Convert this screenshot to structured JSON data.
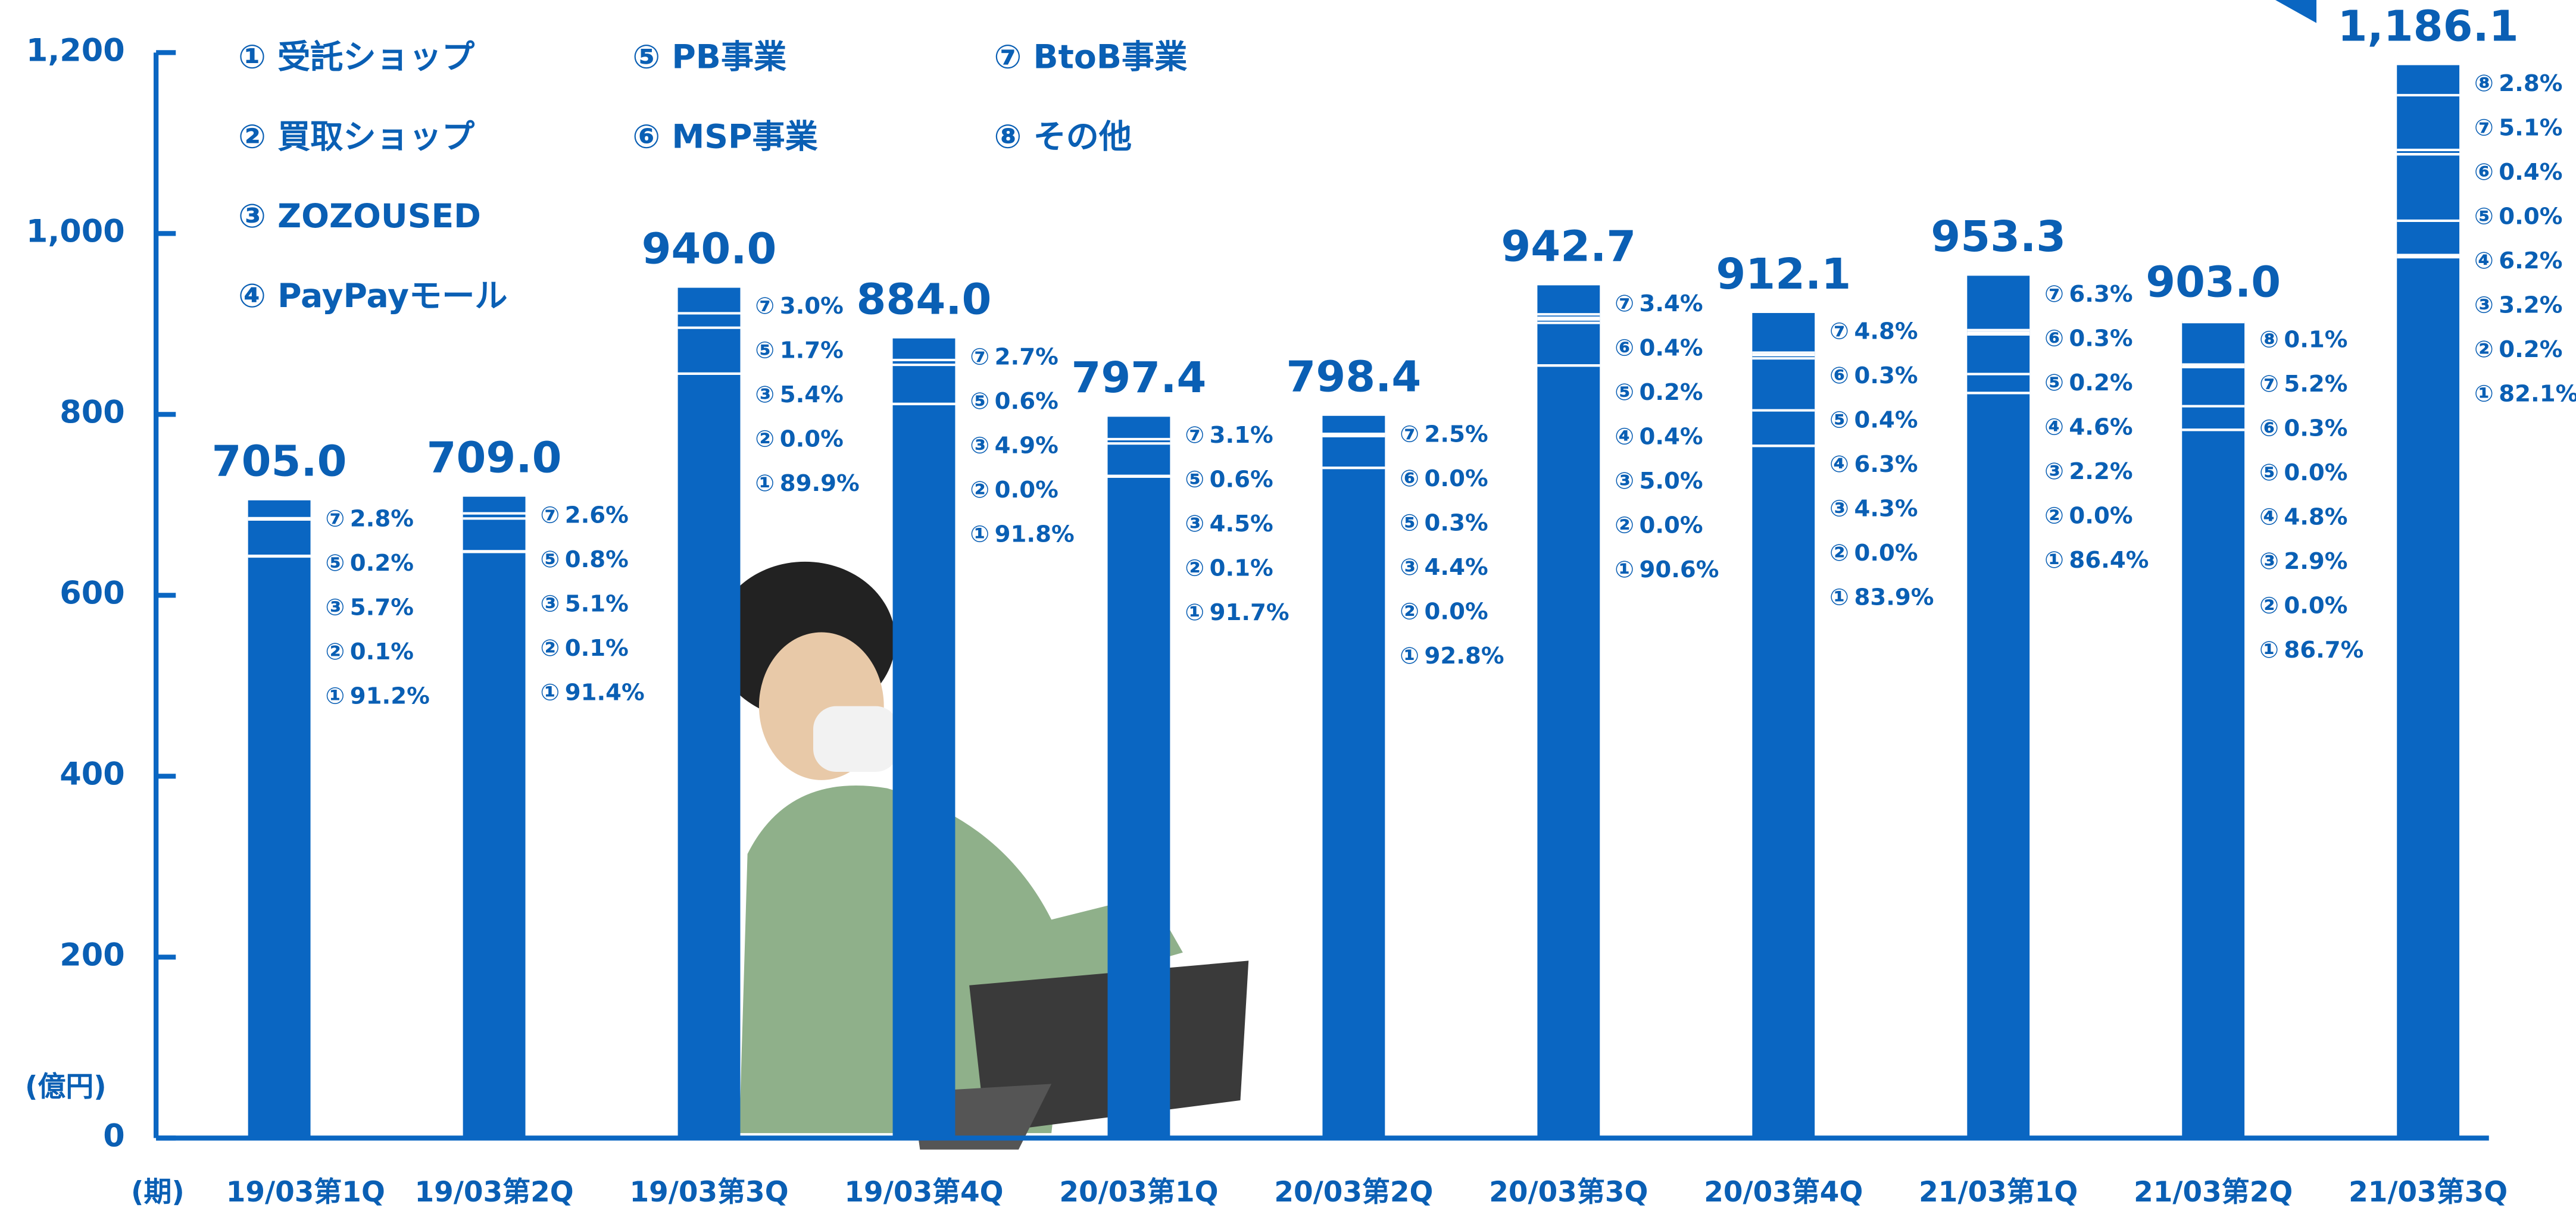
{
  "chart_data": {
    "type": "bar",
    "color": "#0a66c2",
    "y_unit": "(億円)",
    "x_unit": "(期)",
    "categories": [
      "19/03第1Q",
      "19/03第2Q",
      "19/03第3Q",
      "19/03第4Q",
      "20/03第1Q",
      "20/03第2Q",
      "20/03第3Q",
      "20/03第4Q",
      "21/03第1Q",
      "21/03第2Q",
      "21/03第3Q"
    ],
    "values": [
      705.0,
      709.0,
      940.0,
      884.0,
      797.4,
      798.4,
      942.7,
      912.1,
      953.3,
      903.0,
      1186.1
    ],
    "value_labels": [
      "705.0",
      "709.0",
      "940.0",
      "884.0",
      "797.4",
      "798.4",
      "942.7",
      "912.1",
      "953.3",
      "903.0",
      "1,186.1"
    ],
    "ylim": [
      0,
      1200
    ],
    "yticks": [
      0,
      200,
      400,
      600,
      800,
      {
        "value": 1000,
        "label": "1,000"
      },
      {
        "value": 1200,
        "label": "1,200"
      }
    ],
    "legend": [
      [
        "① 受託ショップ",
        "② 買取ショップ",
        "③ ZOZOUSED",
        "④ PayPayモール"
      ],
      [
        "⑤ PB事業",
        "⑥ MSP事業"
      ],
      [
        "⑦ BtoB事業",
        "⑧ その他"
      ]
    ],
    "breakdown": [
      [
        {
          "key": "⑦",
          "share": 2.8,
          "label": "2.8%"
        },
        {
          "key": "⑤",
          "share": 0.2,
          "label": "0.2%"
        },
        {
          "key": "③",
          "share": 5.7,
          "label": "5.7%"
        },
        {
          "key": "②",
          "share": 0.1,
          "label": "0.1%"
        },
        {
          "key": "①",
          "share": 91.2,
          "label": "91.2%"
        }
      ],
      [
        {
          "key": "⑦",
          "share": 2.6,
          "label": "2.6%"
        },
        {
          "key": "⑤",
          "share": 0.8,
          "label": "0.8%"
        },
        {
          "key": "③",
          "share": 5.1,
          "label": "5.1%"
        },
        {
          "key": "②",
          "share": 0.1,
          "label": "0.1%"
        },
        {
          "key": "①",
          "share": 91.4,
          "label": "91.4%"
        }
      ],
      [
        {
          "key": "⑦",
          "share": 3.0,
          "label": "3.0%"
        },
        {
          "key": "⑤",
          "share": 1.7,
          "label": "1.7%"
        },
        {
          "key": "③",
          "share": 5.4,
          "label": "5.4%"
        },
        {
          "key": "②",
          "share": 0.0,
          "label": "0.0%"
        },
        {
          "key": "①",
          "share": 89.9,
          "label": "89.9%"
        }
      ],
      [
        {
          "key": "⑦",
          "share": 2.7,
          "label": "2.7%"
        },
        {
          "key": "⑤",
          "share": 0.6,
          "label": "0.6%"
        },
        {
          "key": "③",
          "share": 4.9,
          "label": "4.9%"
        },
        {
          "key": "②",
          "share": 0.0,
          "label": "0.0%"
        },
        {
          "key": "①",
          "share": 91.8,
          "label": "91.8%"
        }
      ],
      [
        {
          "key": "⑦",
          "share": 3.1,
          "label": "3.1%"
        },
        {
          "key": "⑤",
          "share": 0.6,
          "label": "0.6%"
        },
        {
          "key": "③",
          "share": 4.5,
          "label": "4.5%"
        },
        {
          "key": "②",
          "share": 0.1,
          "label": "0.1%"
        },
        {
          "key": "①",
          "share": 91.7,
          "label": "91.7%"
        }
      ],
      [
        {
          "key": "⑦",
          "share": 2.5,
          "label": "2.5%"
        },
        {
          "key": "⑥",
          "share": 0.0,
          "label": "0.0%"
        },
        {
          "key": "⑤",
          "share": 0.3,
          "label": "0.3%"
        },
        {
          "key": "③",
          "share": 4.4,
          "label": "4.4%"
        },
        {
          "key": "②",
          "share": 0.0,
          "label": "0.0%"
        },
        {
          "key": "①",
          "share": 92.8,
          "label": "92.8%"
        }
      ],
      [
        {
          "key": "⑦",
          "share": 3.4,
          "label": "3.4%"
        },
        {
          "key": "⑥",
          "share": 0.4,
          "label": "0.4%"
        },
        {
          "key": "⑤",
          "share": 0.2,
          "label": "0.2%"
        },
        {
          "key": "④",
          "share": 0.4,
          "label": "0.4%"
        },
        {
          "key": "③",
          "share": 5.0,
          "label": "5.0%"
        },
        {
          "key": "②",
          "share": 0.0,
          "label": "0.0%"
        },
        {
          "key": "①",
          "share": 90.6,
          "label": "90.6%"
        }
      ],
      [
        {
          "key": "⑦",
          "share": 4.8,
          "label": "4.8%"
        },
        {
          "key": "⑥",
          "share": 0.3,
          "label": "0.3%"
        },
        {
          "key": "⑤",
          "share": 0.4,
          "label": "0.4%"
        },
        {
          "key": "④",
          "share": 6.3,
          "label": "6.3%"
        },
        {
          "key": "③",
          "share": 4.3,
          "label": "4.3%"
        },
        {
          "key": "②",
          "share": 0.0,
          "label": "0.0%"
        },
        {
          "key": "①",
          "share": 83.9,
          "label": "83.9%"
        }
      ],
      [
        {
          "key": "⑦",
          "share": 6.3,
          "label": "6.3%"
        },
        {
          "key": "⑥",
          "share": 0.3,
          "label": "0.3%"
        },
        {
          "key": "⑤",
          "share": 0.2,
          "label": "0.2%"
        },
        {
          "key": "④",
          "share": 4.6,
          "label": "4.6%"
        },
        {
          "key": "③",
          "share": 2.2,
          "label": "2.2%"
        },
        {
          "key": "②",
          "share": 0.0,
          "label": "0.0%"
        },
        {
          "key": "①",
          "share": 86.4,
          "label": "86.4%"
        }
      ],
      [
        {
          "key": "⑧",
          "share": 0.1,
          "label": "0.1%"
        },
        {
          "key": "⑦",
          "share": 5.2,
          "label": "5.2%"
        },
        {
          "key": "⑥",
          "share": 0.3,
          "label": "0.3%"
        },
        {
          "key": "⑤",
          "share": 0.0,
          "label": "0.0%"
        },
        {
          "key": "④",
          "share": 4.8,
          "label": "4.8%"
        },
        {
          "key": "③",
          "share": 2.9,
          "label": "2.9%"
        },
        {
          "key": "②",
          "share": 0.0,
          "label": "0.0%"
        },
        {
          "key": "①",
          "share": 86.7,
          "label": "86.7%"
        }
      ],
      [
        {
          "key": "⑧",
          "share": 2.8,
          "label": "2.8%"
        },
        {
          "key": "⑦",
          "share": 5.1,
          "label": "5.1%"
        },
        {
          "key": "⑥",
          "share": 0.4,
          "label": "0.4%"
        },
        {
          "key": "⑤",
          "share": 0.0,
          "label": "0.0%"
        },
        {
          "key": "④",
          "share": 6.2,
          "label": "6.2%"
        },
        {
          "key": "③",
          "share": 3.2,
          "label": "3.2%"
        },
        {
          "key": "②",
          "share": 0.2,
          "label": "0.2%"
        },
        {
          "key": "①",
          "share": 82.1,
          "label": "82.1%"
        }
      ]
    ]
  }
}
